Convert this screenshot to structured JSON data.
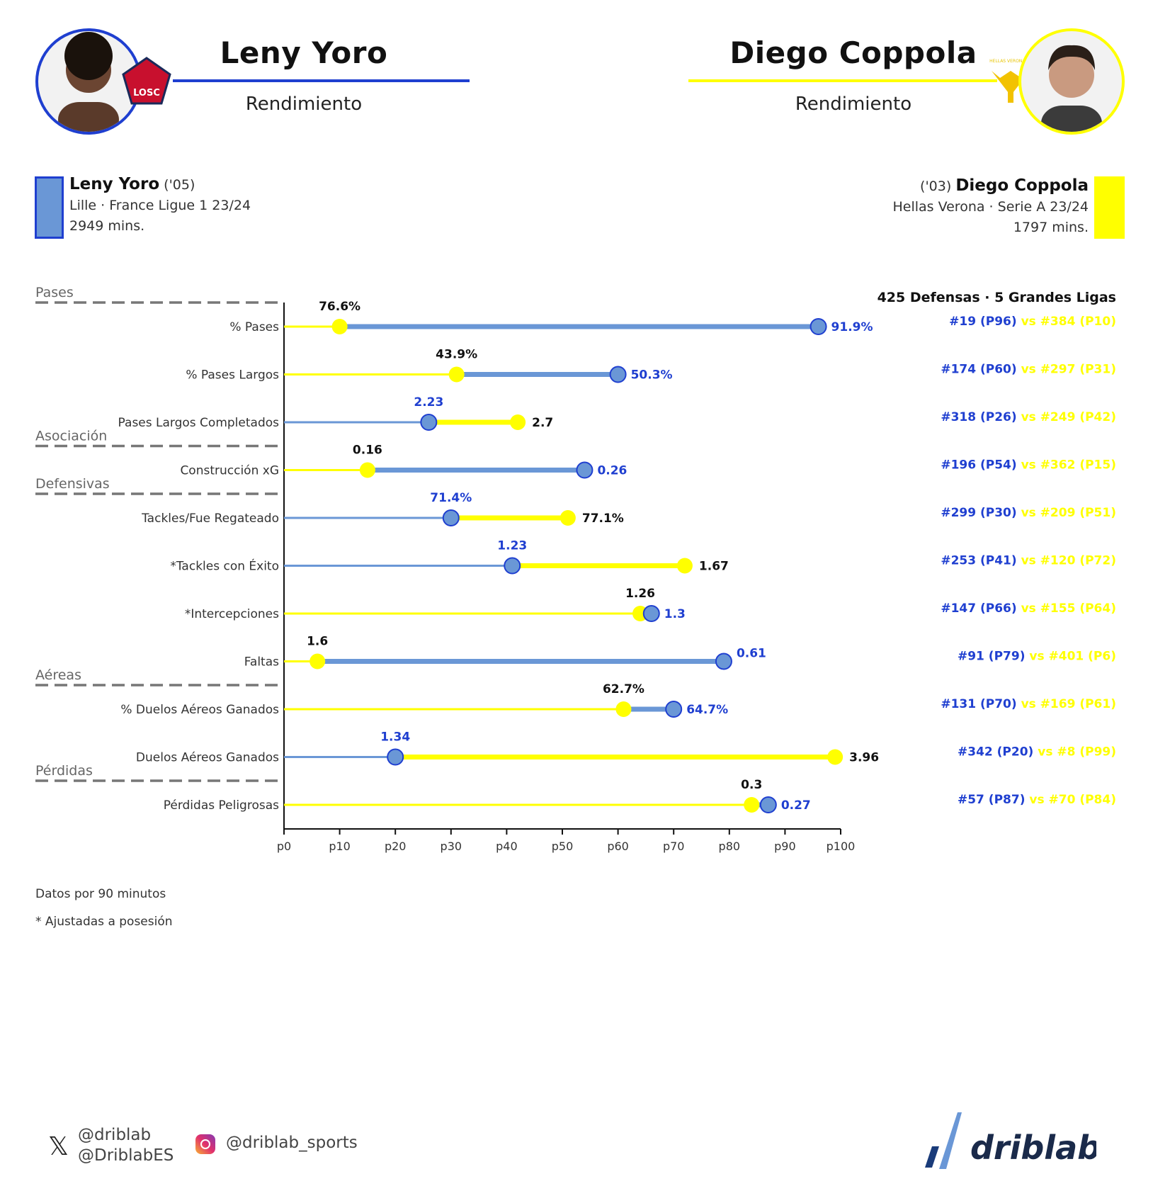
{
  "header": {
    "left": {
      "name": "Leny Yoro",
      "subtitle": "Rendimiento",
      "badge": "LOSC",
      "color": "#1f3fd0"
    },
    "right": {
      "name": "Diego Coppola",
      "subtitle": "Rendimiento",
      "badge": "HELLAS VERONA FC",
      "color": "#ffff00"
    }
  },
  "players": {
    "left": {
      "name": "Leny Yoro",
      "year": "('05)",
      "team": "Lille · France Ligue 1 23/24",
      "minutes": "2949 mins.",
      "color": "#6a97d6"
    },
    "right": {
      "name": "Diego Coppola",
      "year": "('03)",
      "team": "Hellas Verona · Serie A 23/24",
      "minutes": "1797 mins.",
      "color": "#ffff00"
    }
  },
  "ranking_header": "425 Defensas · 5 Grandes Ligas",
  "chart_data": {
    "type": "dumbbell",
    "x_ticks": [
      "p0",
      "p10",
      "p20",
      "p30",
      "p40",
      "p50",
      "p60",
      "p70",
      "p80",
      "p90",
      "p100"
    ],
    "xlim": [
      0,
      100
    ],
    "sections": [
      {
        "label": "Pases",
        "before_row": 0
      },
      {
        "label": "Asociación",
        "before_row": 3
      },
      {
        "label": "Defensivas",
        "before_row": 4
      },
      {
        "label": "Aéreas",
        "before_row": 8
      },
      {
        "label": "Pérdidas",
        "before_row": 10
      }
    ],
    "series": [
      {
        "name": "Leny Yoro",
        "color": "#6a97d6",
        "text_color": "#1f3fd0"
      },
      {
        "name": "Diego Coppola",
        "color": "#ffff00",
        "text_color": "#111111"
      }
    ],
    "rows": [
      {
        "metric": "% Pases",
        "yoro": {
          "pct": 96,
          "value": "91.9%",
          "rank": "#19 (P96)"
        },
        "coppola": {
          "pct": 10,
          "value": "76.6%",
          "rank": "#384 (P10)"
        }
      },
      {
        "metric": "% Pases Largos",
        "yoro": {
          "pct": 60,
          "value": "50.3%",
          "rank": "#174 (P60)"
        },
        "coppola": {
          "pct": 31,
          "value": "43.9%",
          "rank": "#297 (P31)"
        }
      },
      {
        "metric": "Pases Largos Completados",
        "yoro": {
          "pct": 26,
          "value": "2.23",
          "rank": "#318 (P26)"
        },
        "coppola": {
          "pct": 42,
          "value": "2.7",
          "rank": "#249 (P42)"
        }
      },
      {
        "metric": "Construcción xG",
        "yoro": {
          "pct": 54,
          "value": "0.26",
          "rank": "#196 (P54)"
        },
        "coppola": {
          "pct": 15,
          "value": "0.16",
          "rank": "#362 (P15)"
        }
      },
      {
        "metric": "Tackles/Fue Regateado",
        "yoro": {
          "pct": 30,
          "value": "71.4%",
          "rank": "#299 (P30)"
        },
        "coppola": {
          "pct": 51,
          "value": "77.1%",
          "rank": "#209 (P51)"
        }
      },
      {
        "metric": "*Tackles con Éxito",
        "yoro": {
          "pct": 41,
          "value": "1.23",
          "rank": "#253 (P41)"
        },
        "coppola": {
          "pct": 72,
          "value": "1.67",
          "rank": "#120 (P72)"
        }
      },
      {
        "metric": "*Intercepciones",
        "yoro": {
          "pct": 66,
          "value": "1.3",
          "rank": "#147 (P66)"
        },
        "coppola": {
          "pct": 64,
          "value": "1.26",
          "rank": "#155 (P64)"
        }
      },
      {
        "metric": "Faltas",
        "yoro": {
          "pct": 79,
          "value": "0.61",
          "rank": "#91 (P79)"
        },
        "coppola": {
          "pct": 6,
          "value": "1.6",
          "rank": "#401 (P6)"
        }
      },
      {
        "metric": "% Duelos Aéreos Ganados",
        "yoro": {
          "pct": 70,
          "value": "64.7%",
          "rank": "#131 (P70)"
        },
        "coppola": {
          "pct": 61,
          "value": "62.7%",
          "rank": "#169 (P61)"
        }
      },
      {
        "metric": "Duelos Aéreos Ganados",
        "yoro": {
          "pct": 20,
          "value": "1.34",
          "rank": "#342 (P20)"
        },
        "coppola": {
          "pct": 99,
          "value": "3.96",
          "rank": "#8 (P99)"
        }
      },
      {
        "metric": "Pérdidas Peligrosas",
        "yoro": {
          "pct": 87,
          "value": "0.27",
          "rank": "#57 (P87)"
        },
        "coppola": {
          "pct": 84,
          "value": "0.3",
          "rank": "#70 (P84)"
        }
      }
    ],
    "vs_label": "vs"
  },
  "footnotes": {
    "per90": "Datos por 90 minutos",
    "adjusted": "* Ajustadas a posesión"
  },
  "footer": {
    "twitter1": "@driblab",
    "twitter2": "@DriblabES",
    "instagram": "@driblab_sports",
    "logo": "driblab"
  }
}
